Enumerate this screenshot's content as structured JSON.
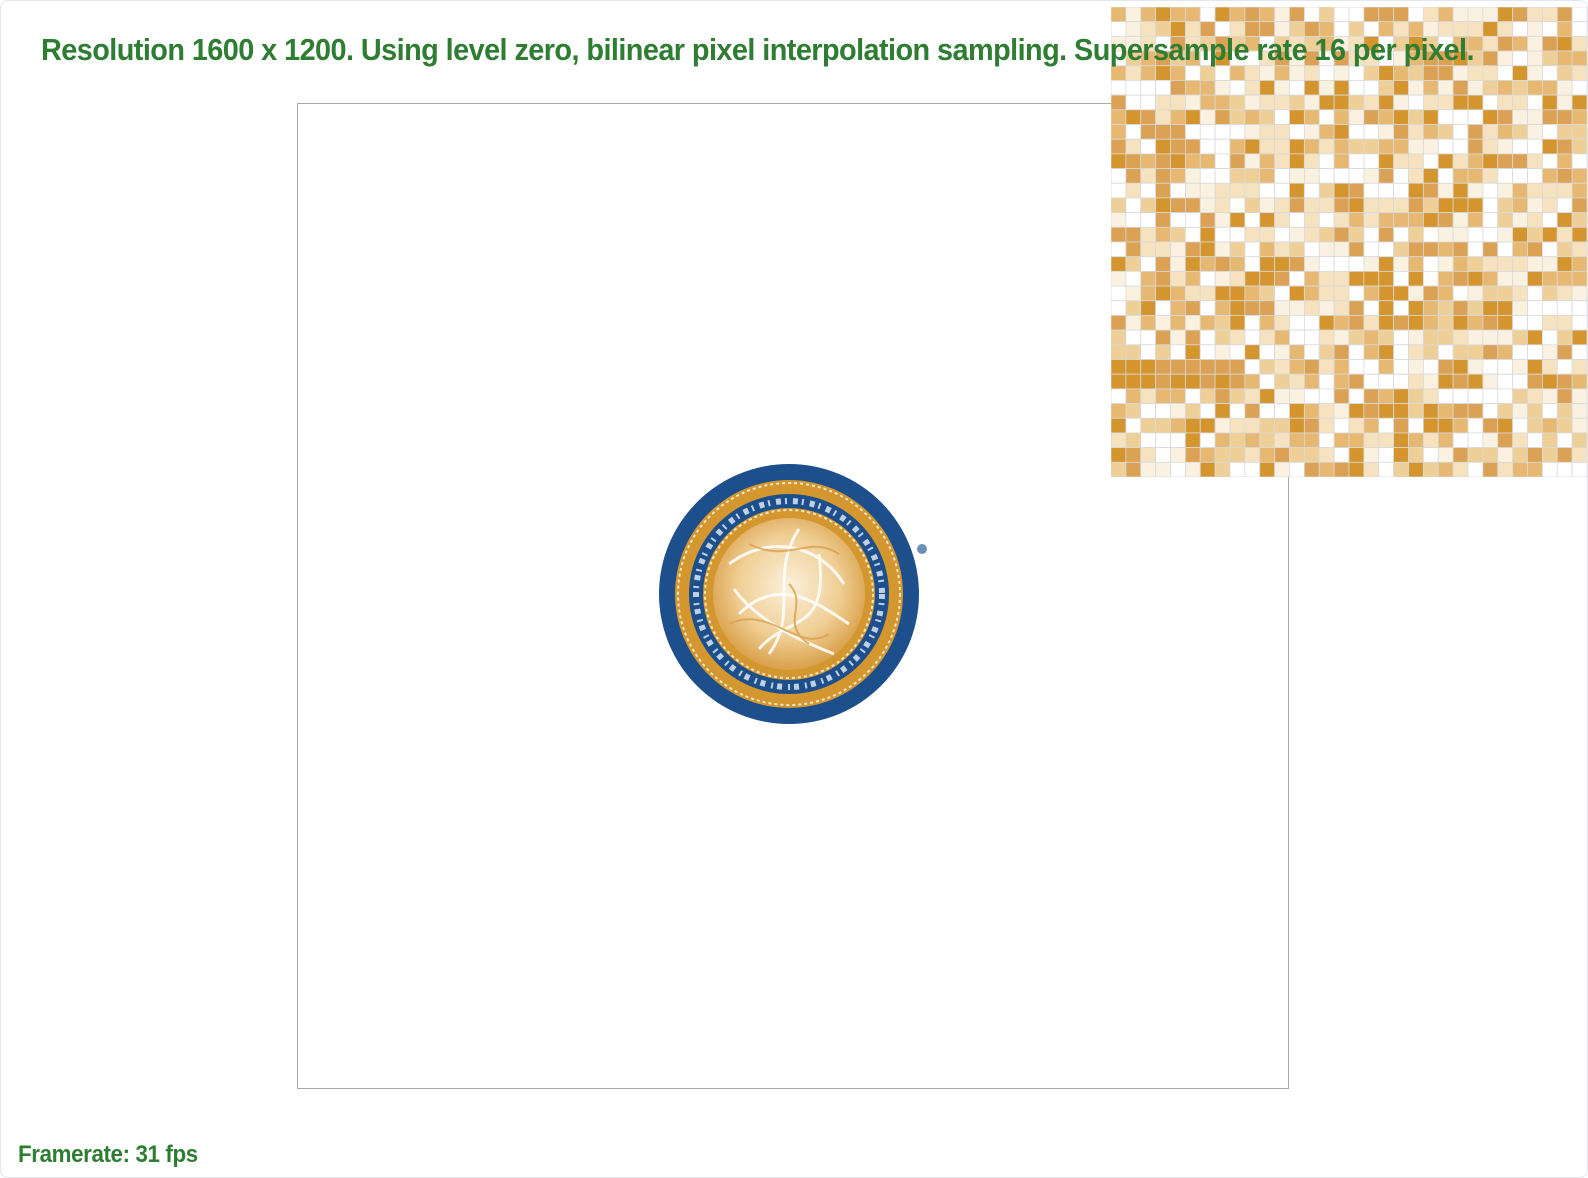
{
  "status": {
    "resolution_text": "Resolution 1600 x 1200. Using level zero, bilinear pixel interpolation sampling. Supersample rate 16 per pixel."
  },
  "footer": {
    "framerate_text": "Framerate: 31 fps"
  },
  "zoom": {
    "grid_cols": 32,
    "grid_rows": 32
  },
  "colors": {
    "text_green": "#2e7d32",
    "seal_blue": "#1c4f8c",
    "seal_gold": "#d4972f",
    "seal_cream": "#f6e3c2",
    "canvas_border": "#a9a9a9",
    "grid_line": "#d9d9d9"
  }
}
